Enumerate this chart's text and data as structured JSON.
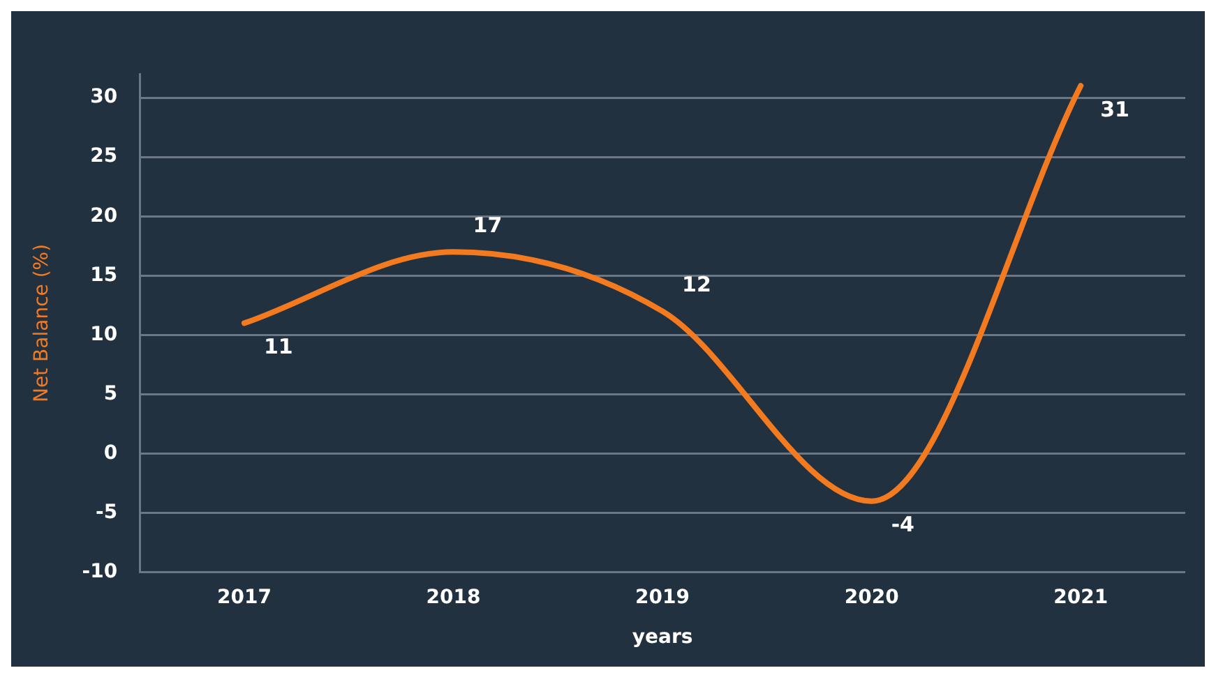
{
  "chart_data": {
    "type": "line",
    "xlabel": "years",
    "ylabel": "Net Balance (%)",
    "categories": [
      "2017",
      "2018",
      "2019",
      "2020",
      "2021"
    ],
    "series": [
      {
        "color": "#f47a20",
        "values": [
          11,
          17,
          12,
          -4,
          31
        ]
      }
    ],
    "ylim": [
      -10,
      32
    ],
    "yticks": [
      -10,
      -5,
      0,
      5,
      10,
      15,
      20,
      25,
      30
    ],
    "grid": "y",
    "legend": false,
    "data_labels": true,
    "marker": "none"
  }
}
